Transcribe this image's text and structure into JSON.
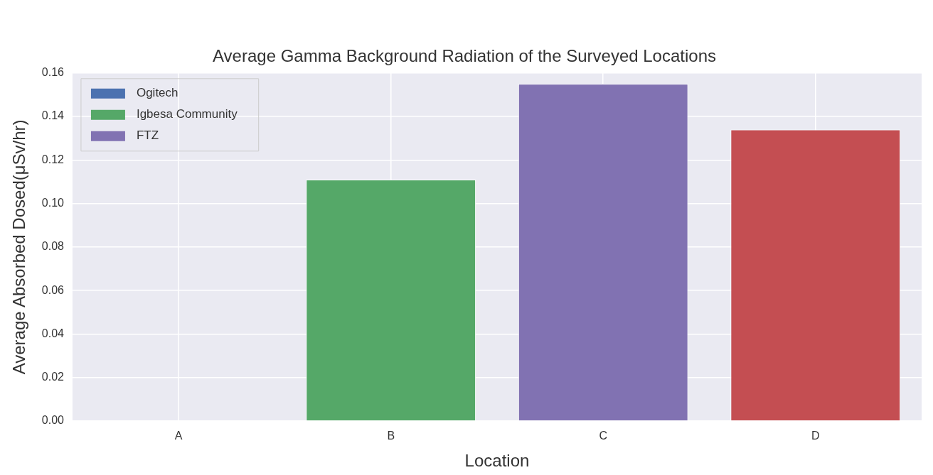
{
  "chart_data": {
    "type": "bar",
    "title": "Average Gamma Background Radiation of the Surveyed Locations",
    "xlabel": "Location",
    "ylabel": "Average Absorbed Dosed(μSv/hr)",
    "categories": [
      "A",
      "B",
      "C",
      "D"
    ],
    "series": [
      {
        "name": "Ogitech",
        "color": "#4c72b0",
        "values": [
          null,
          null,
          null,
          null
        ]
      },
      {
        "name": "Igbesa Community",
        "color": "#55a868",
        "values": [
          null,
          0.111,
          null,
          null
        ]
      },
      {
        "name": "FTZ",
        "color": "#8172b2",
        "values": [
          null,
          null,
          0.155,
          null
        ]
      },
      {
        "color": "#c44e52",
        "values": [
          null,
          null,
          null,
          0.134
        ]
      }
    ],
    "ylim": [
      0,
      0.16
    ],
    "yticks": [
      {
        "value": 0,
        "label": "0.00"
      },
      {
        "value": 0.02,
        "label": "0.02"
      },
      {
        "value": 0.04,
        "label": "0.04"
      },
      {
        "value": 0.06,
        "label": "0.06"
      },
      {
        "value": 0.08,
        "label": "0.08"
      },
      {
        "value": 0.1,
        "label": "0.10"
      },
      {
        "value": 0.12,
        "label": "0.12"
      },
      {
        "value": 0.14,
        "label": "0.14"
      },
      {
        "value": 0.16,
        "label": "0.16"
      }
    ],
    "grid": true,
    "legend": "top left"
  }
}
